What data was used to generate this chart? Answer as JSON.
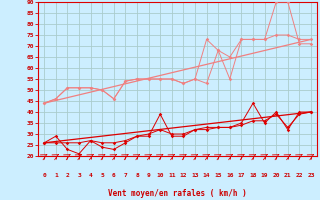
{
  "bg_color": "#cceeff",
  "grid_color": "#aacccc",
  "line_color_light": "#f08080",
  "line_color_dark": "#dd0000",
  "xlabel": "Vent moyen/en rafales ( km/h )",
  "xlabel_color": "#cc0000",
  "tick_color": "#cc0000",
  "xlim": [
    -0.5,
    23.5
  ],
  "ylim": [
    20,
    90
  ],
  "yticks": [
    20,
    25,
    30,
    35,
    40,
    45,
    50,
    55,
    60,
    65,
    70,
    75,
    80,
    85,
    90
  ],
  "xticks": [
    0,
    1,
    2,
    3,
    4,
    5,
    6,
    7,
    8,
    9,
    10,
    11,
    12,
    13,
    14,
    15,
    16,
    17,
    18,
    19,
    20,
    21,
    22,
    23
  ],
  "lines_light": [
    [
      44,
      46,
      51,
      51,
      51,
      50,
      46,
      54,
      55,
      55,
      55,
      55,
      53,
      55,
      73,
      68,
      55,
      73,
      73,
      73,
      90,
      90,
      71,
      71
    ],
    [
      44,
      46,
      51,
      51,
      51,
      50,
      46,
      54,
      55,
      55,
      55,
      55,
      53,
      55,
      53,
      68,
      65,
      73,
      73,
      73,
      75,
      75,
      73,
      73
    ],
    [
      44,
      73
    ]
  ],
  "lines_light_x": [
    [
      0,
      1,
      2,
      3,
      4,
      5,
      6,
      7,
      8,
      9,
      10,
      11,
      12,
      13,
      14,
      15,
      16,
      17,
      18,
      19,
      20,
      21,
      22,
      23
    ],
    [
      0,
      1,
      2,
      3,
      4,
      5,
      6,
      7,
      8,
      9,
      10,
      11,
      12,
      13,
      14,
      15,
      16,
      17,
      18,
      19,
      20,
      21,
      22,
      23
    ],
    [
      0,
      23
    ]
  ],
  "lines_dark": [
    [
      26,
      29,
      23,
      21,
      27,
      24,
      23,
      26,
      29,
      29,
      39,
      29,
      29,
      32,
      32,
      33,
      33,
      35,
      44,
      35,
      40,
      32,
      40,
      40
    ],
    [
      26,
      26,
      26,
      26,
      27,
      26,
      26,
      27,
      29,
      30,
      32,
      30,
      30,
      32,
      33,
      33,
      33,
      34,
      36,
      36,
      39,
      33,
      39,
      40
    ],
    [
      26,
      40
    ]
  ],
  "lines_dark_x": [
    [
      0,
      1,
      2,
      3,
      4,
      5,
      6,
      7,
      8,
      9,
      10,
      11,
      12,
      13,
      14,
      15,
      16,
      17,
      18,
      19,
      20,
      21,
      22,
      23
    ],
    [
      0,
      1,
      2,
      3,
      4,
      5,
      6,
      7,
      8,
      9,
      10,
      11,
      12,
      13,
      14,
      15,
      16,
      17,
      18,
      19,
      20,
      21,
      22,
      23
    ],
    [
      0,
      23
    ]
  ],
  "dpi": 100,
  "figsize": [
    3.2,
    2.0
  ]
}
